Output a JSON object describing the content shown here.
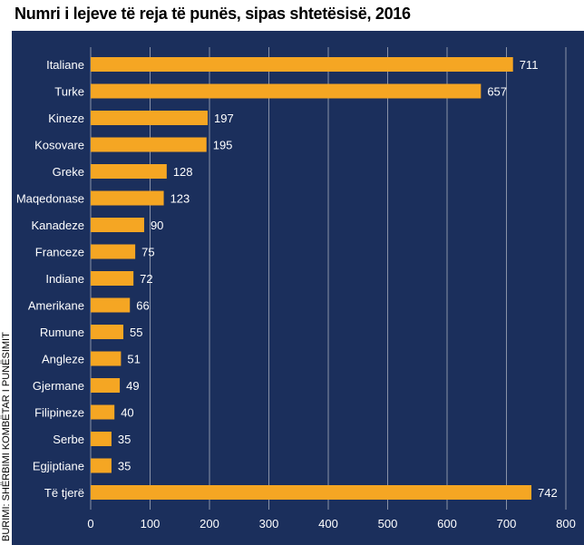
{
  "chart_data": {
    "type": "bar",
    "orientation": "horizontal",
    "title": "Numri i lejeve të reja të punës, sipas shtetësisë, 2016",
    "source": "BURIMI: SHËRBIMI KOMBËTAR I PUNËSIMIT",
    "categories": [
      "Italiane",
      "Turke",
      "Kineze",
      "Kosovare",
      "Greke",
      "Maqedonase",
      "Kanadeze",
      "Franceze",
      "Indiane",
      "Amerikane",
      "Rumune",
      "Angleze",
      "Gjermane",
      "Filipineze",
      "Serbe",
      "Egjiptiane",
      "Të tjerë"
    ],
    "values": [
      711,
      657,
      197,
      195,
      128,
      123,
      90,
      75,
      72,
      66,
      55,
      51,
      49,
      40,
      35,
      35,
      742
    ],
    "xlim": [
      0,
      800
    ],
    "xticks": [
      0,
      100,
      200,
      300,
      400,
      500,
      600,
      700,
      800
    ],
    "grid": true,
    "colors": {
      "background": "#1b2f5c",
      "bar": "#f5a623",
      "grid": "#8a93a8",
      "text": "#ffffff"
    }
  }
}
